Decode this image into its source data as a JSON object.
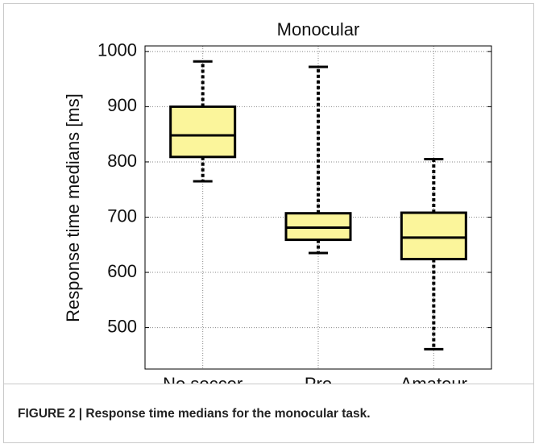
{
  "chart_data": {
    "type": "box",
    "title": "Monocular",
    "y_label": "Response time medians [ms]",
    "categories": [
      "No soccer",
      "Pro",
      "Amateur"
    ],
    "min": [
      765,
      635,
      461
    ],
    "q1": [
      809,
      659,
      624
    ],
    "median": [
      848,
      681,
      663
    ],
    "q3": [
      900,
      707,
      708
    ],
    "max": [
      982,
      972,
      805
    ],
    "color": "#fbf59b",
    "ylim": [
      425,
      1010
    ],
    "yticks": [
      500,
      600,
      700,
      800,
      900,
      1000
    ],
    "grid": true
  },
  "caption": "FIGURE 2 | Response time medians for the monocular task."
}
